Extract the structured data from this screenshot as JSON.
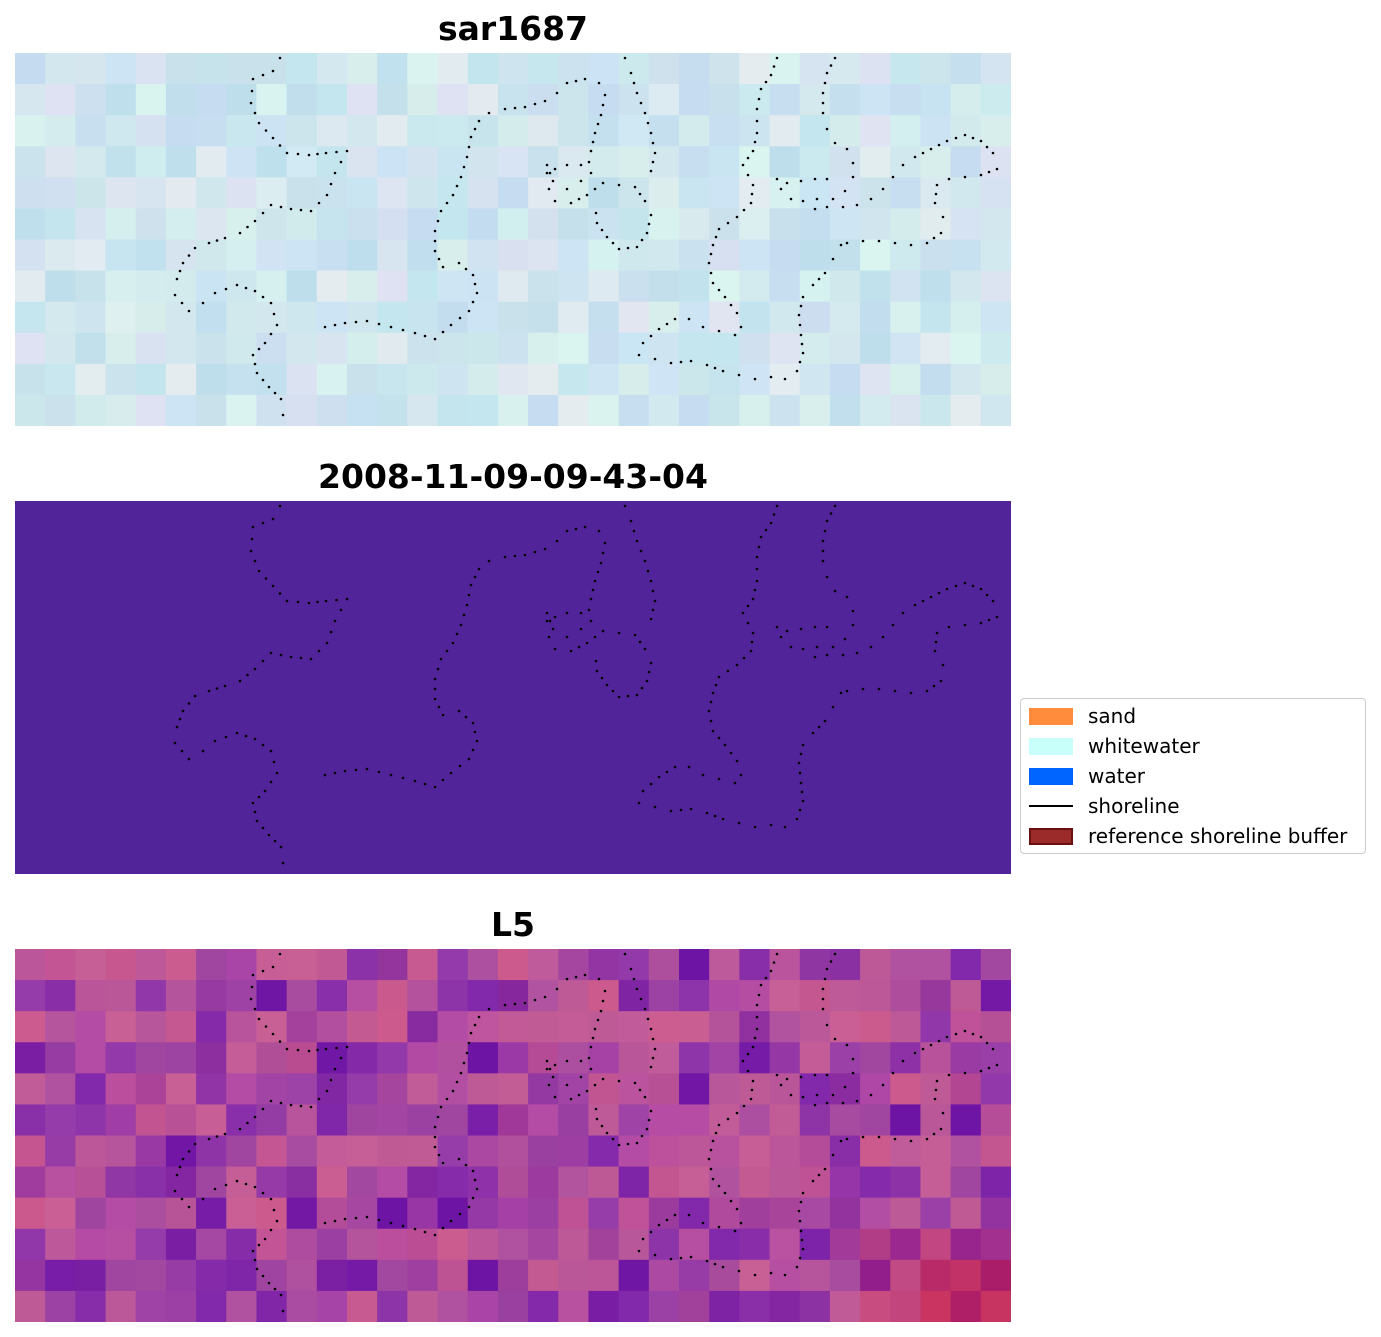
{
  "panels": [
    {
      "id": "sar",
      "title": "sar1687",
      "style": "pastel"
    },
    {
      "id": "classified",
      "title": "2008-11-09-09-43-04",
      "fill": "#52249A"
    },
    {
      "id": "l5",
      "title": "L5",
      "style": "purple-pink"
    }
  ],
  "legend": {
    "items": [
      {
        "label": "sand",
        "color": "#FF8C3C",
        "kind": "patch"
      },
      {
        "label": "whitewater",
        "color": "#C8FFFA",
        "kind": "patch"
      },
      {
        "label": "water",
        "color": "#0064FF",
        "kind": "patch"
      },
      {
        "label": "shoreline",
        "color": "#000000",
        "kind": "line"
      },
      {
        "label": "reference shoreline buffer",
        "color": "#9B2A2A",
        "kind": "patch-edged"
      }
    ]
  },
  "colors": {
    "shoreline_dots": "#000000",
    "background": "#ffffff"
  }
}
